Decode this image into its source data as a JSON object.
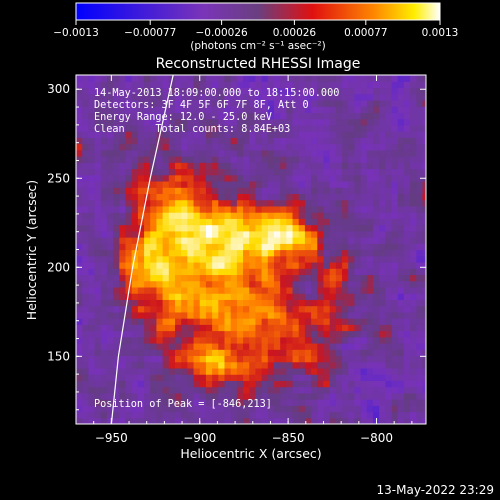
{
  "chart_data": {
    "type": "heatmap",
    "title": "Reconstructed RHESSI Image",
    "xlabel": "Heliocentric X (arcsec)",
    "ylabel": "Heliocentric Y (arcsec)",
    "xlim": [
      -970,
      -772
    ],
    "ylim": [
      112,
      308
    ],
    "x_ticks": [
      -950,
      -900,
      -850,
      -800
    ],
    "y_ticks": [
      150,
      200,
      250,
      300
    ],
    "colorbar": {
      "range": [
        -0.0013,
        0.0013
      ],
      "ticks": [
        "-0.0013",
        "-0.00077",
        "-0.00026",
        "0.00026",
        "0.00077",
        "0.0013"
      ],
      "unit_label": "(photons cm⁻² s⁻¹ asec⁻²)"
    },
    "annotations": [
      "14-May-2013 18:09:00.000 to 18:15:00.000",
      "Detectors: 3F 4F 5F 6F 7F 8F, Att 0",
      "Energy Range: 12.0 - 25.0 keV",
      "Clean     Total counts: 8.84E+03"
    ],
    "peak_label": "Position of Peak = [-846,213]",
    "peak": [
      -846,
      213
    ],
    "sources": [
      {
        "x": -880,
        "y": 218,
        "sx": 28,
        "sy": 14,
        "amp": 0.00115
      },
      {
        "x": -846,
        "y": 213,
        "sx": 11,
        "sy": 9,
        "amp": 0.0006
      },
      {
        "x": -905,
        "y": 185,
        "sx": 18,
        "sy": 17,
        "amp": 0.00085
      },
      {
        "x": -915,
        "y": 238,
        "sx": 15,
        "sy": 15,
        "amp": 0.0007
      },
      {
        "x": -870,
        "y": 175,
        "sx": 16,
        "sy": 15,
        "amp": 0.00075
      },
      {
        "x": -930,
        "y": 205,
        "sx": 13,
        "sy": 18,
        "amp": 0.0007
      },
      {
        "x": -878,
        "y": 140,
        "sx": 14,
        "sy": 11,
        "amp": 0.0006
      },
      {
        "x": -838,
        "y": 162,
        "sx": 15,
        "sy": 14,
        "amp": 0.0006
      },
      {
        "x": -820,
        "y": 190,
        "sx": 10,
        "sy": 10,
        "amp": 0.00045
      },
      {
        "x": -902,
        "y": 150,
        "sx": 12,
        "sy": 10,
        "amp": 0.00055
      }
    ],
    "limb_curve": [
      [
        -950,
        112
      ],
      [
        -946,
        150
      ],
      [
        -938,
        200
      ],
      [
        -928,
        250
      ],
      [
        -915,
        308
      ]
    ]
  },
  "timestamp": "13-May-2022 23:29"
}
